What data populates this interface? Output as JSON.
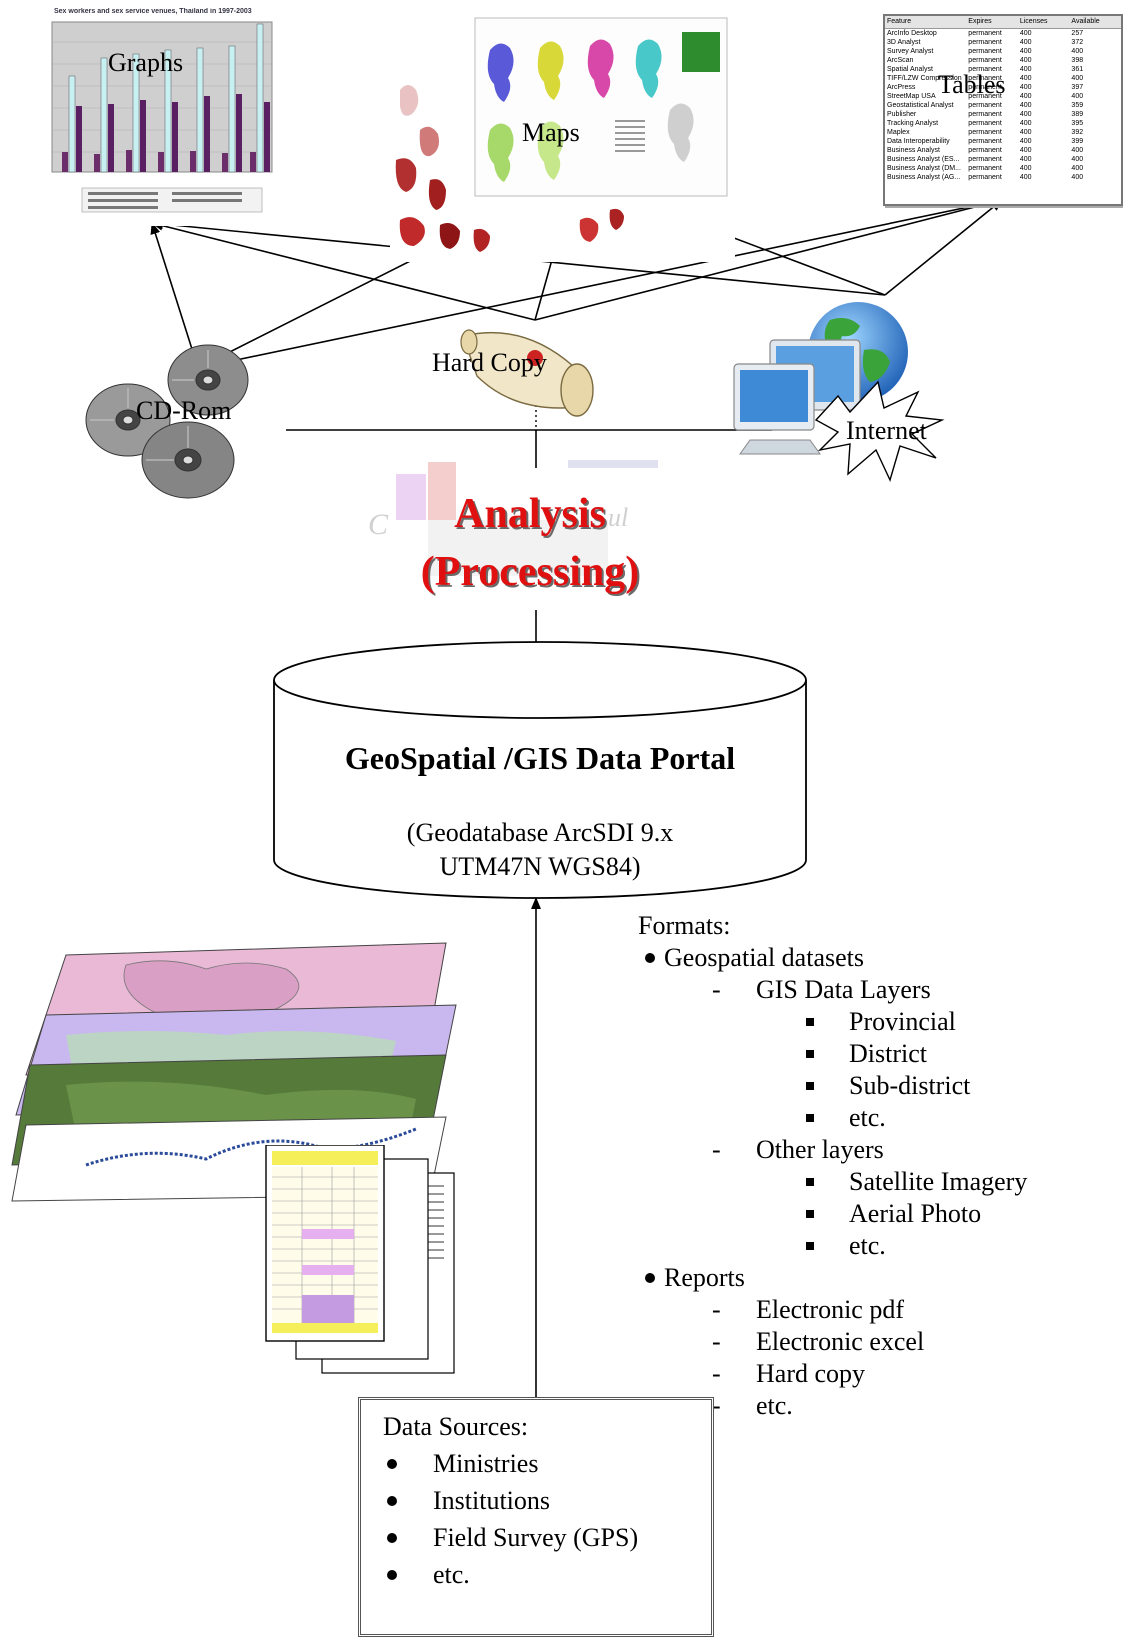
{
  "nodes": {
    "graphs": "Graphs",
    "maps": "Maps",
    "tables": "Tables",
    "cd_rom": "CD-Rom",
    "hard_copy": "Hard Copy",
    "internet": "Internet"
  },
  "analysis": {
    "line1": "Analysis",
    "line2": "(Processing)"
  },
  "portal": {
    "title": "GeoSpatial /GIS Data Portal",
    "sub1": "(Geodatabase ArcSDI 9.x",
    "sub2": "UTM47N WGS84)"
  },
  "formats": {
    "heading": "Formats:",
    "items": [
      {
        "level": 1,
        "text": "Geospatial datasets"
      },
      {
        "level": 2,
        "text": "GIS Data Layers"
      },
      {
        "level": 3,
        "text": "Provincial"
      },
      {
        "level": 3,
        "text": "District"
      },
      {
        "level": 3,
        "text": "Sub-district"
      },
      {
        "level": 3,
        "text": "etc."
      },
      {
        "level": 2,
        "text": "Other layers"
      },
      {
        "level": 3,
        "text": "Satellite Imagery"
      },
      {
        "level": 3,
        "text": "Aerial Photo"
      },
      {
        "level": 3,
        "text": "etc."
      },
      {
        "level": 1,
        "text": "Reports"
      },
      {
        "level": 2,
        "text": "Electronic pdf"
      },
      {
        "level": 2,
        "text": "Electronic excel"
      },
      {
        "level": 2,
        "text": "Hard copy"
      },
      {
        "level": 2,
        "text": "etc."
      }
    ]
  },
  "sources": {
    "heading": "Data Sources:",
    "items": [
      "Ministries",
      "Institutions",
      "Field Survey (GPS)",
      "etc."
    ]
  },
  "thumbnails": {
    "graph_title": "Sex workers and sex service venues, Thailand in 1997-2003",
    "table_headers": [
      "Feature",
      "Expires",
      "Licenses",
      "Available"
    ],
    "table_rows": [
      [
        "ArcInfo Desktop",
        "permanent",
        "400",
        "257"
      ],
      [
        "3D Analyst",
        "permanent",
        "400",
        "372"
      ],
      [
        "Survey Analyst",
        "permanent",
        "400",
        "400"
      ],
      [
        "ArcScan",
        "permanent",
        "400",
        "398"
      ],
      [
        "Spatial Analyst",
        "permanent",
        "400",
        "361"
      ],
      [
        "TIFF/LZW Compression",
        "permanent",
        "400",
        "400"
      ],
      [
        "ArcPress",
        "permanent",
        "400",
        "397"
      ],
      [
        "StreetMap USA",
        "permanent",
        "400",
        "400"
      ],
      [
        "Geostatistical Analyst",
        "permanent",
        "400",
        "359"
      ],
      [
        "Publisher",
        "permanent",
        "400",
        "389"
      ],
      [
        "Tracking Analyst",
        "permanent",
        "400",
        "395"
      ],
      [
        "Maplex",
        "permanent",
        "400",
        "392"
      ],
      [
        "Data Interoperability",
        "permanent",
        "400",
        "399"
      ],
      [
        "Business Analyst",
        "permanent",
        "400",
        "400"
      ],
      [
        "Business Analyst (ES...",
        "permanent",
        "400",
        "400"
      ],
      [
        "Business Analyst (DM...",
        "permanent",
        "400",
        "400"
      ],
      [
        "Business Analyst (AG...",
        "permanent",
        "400",
        "400"
      ]
    ]
  }
}
